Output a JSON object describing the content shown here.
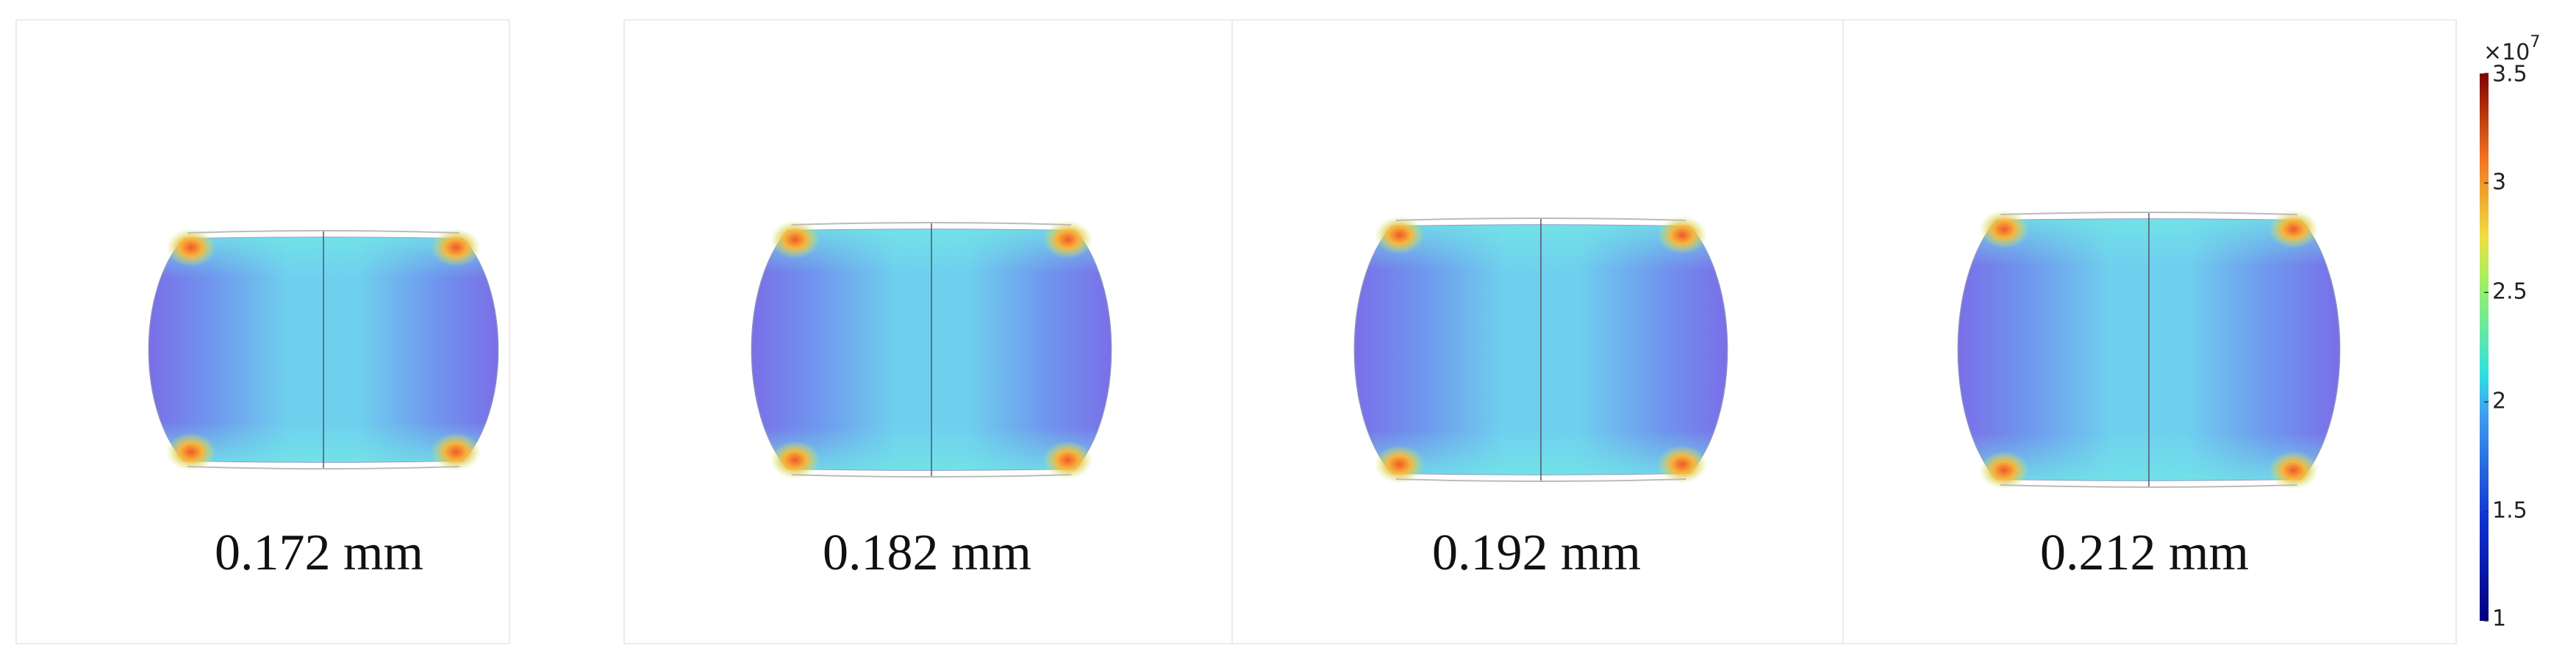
{
  "panels": [
    {
      "label": "0.172 mm"
    },
    {
      "label": "0.182 mm"
    },
    {
      "label": "0.192 mm"
    },
    {
      "label": "0.212 mm"
    }
  ],
  "colorbar": {
    "multiplier": "×10",
    "exponent": "7",
    "ticks": [
      "1",
      "1.5",
      "2",
      "2.5",
      "3",
      "3.5"
    ]
  }
}
